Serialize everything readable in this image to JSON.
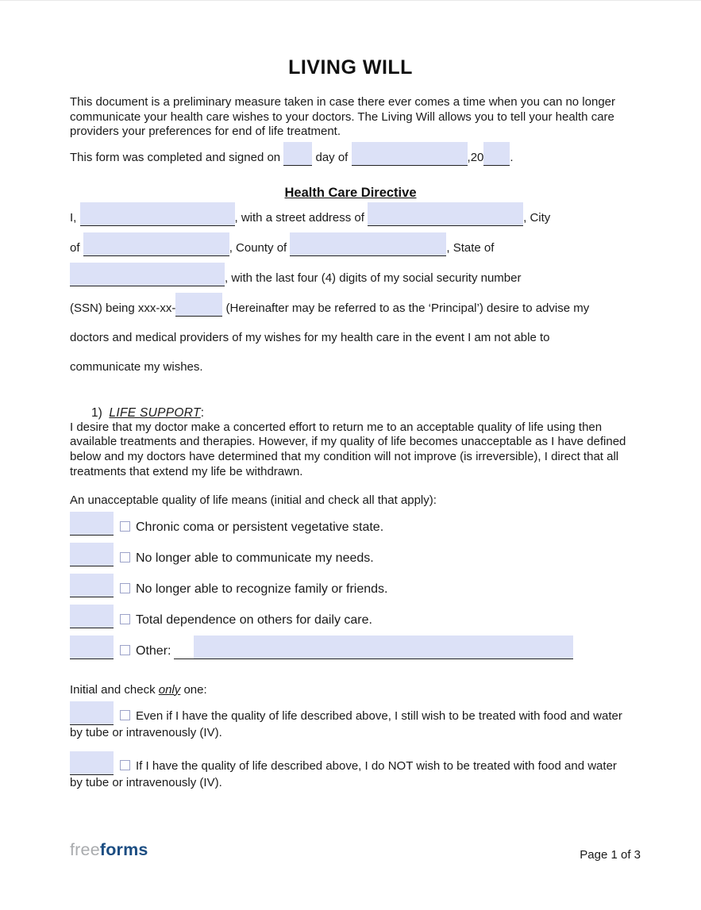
{
  "title": "LIVING WILL",
  "intro": "This document is a preliminary measure taken in case there ever comes a time when you can no longer communicate your health care wishes to your doctors. The Living Will allows you to tell your health care providers your preferences for end of life treatment.",
  "signed_line": {
    "prefix": "This form was completed and signed on",
    "middle": "day of",
    "year_prefix": ",20",
    "period": "."
  },
  "directive": {
    "heading": "Health Care Directive",
    "l1a": "I,",
    "l1b": ", with a street address of",
    "l1c": ", City",
    "l2a": "of",
    "l2b": ", County of",
    "l2c": ", State of",
    "l3": ", with the last four (4) digits of my social security number",
    "l4a": "(SSN) being xxx-xx-",
    "l4b": "(Hereinafter may be referred to as the ‘Principal’) desire to advise my",
    "l5": "doctors and medical providers of my wishes for my health care in the event I am not able to",
    "l6": "communicate my wishes."
  },
  "life_support": {
    "number": "1)",
    "heading": "LIFE SUPPORT",
    "colon": ":",
    "body": "I desire that my doctor make a concerted effort to return me to an acceptable quality of life using then available treatments and therapies. However, if my quality of life becomes unacceptable as I have defined below and my doctors have determined that my condition will not improve (is irreversible), I direct that all treatments that extend my life be withdrawn.",
    "quality_prompt": "An unacceptable quality of life means (initial and check all that apply):",
    "options": [
      {
        "label": "Chronic coma or persistent vegetative state."
      },
      {
        "label": "No longer able to communicate my needs."
      },
      {
        "label": "No longer able to recognize family or friends."
      },
      {
        "label": "Total dependence on others for daily care."
      },
      {
        "label": "Other:"
      }
    ],
    "initial_prompt_a": "Initial and check",
    "initial_prompt_em": "only",
    "initial_prompt_b": "one:",
    "exclusive_options": [
      "Even if I have the quality of life described above, I still wish to be treated with food and water by tube or intravenously (IV).",
      "If I have the quality of life described above, I do NOT wish to be treated with food and water by tube or intravenously (IV)."
    ]
  },
  "footer": {
    "logo_free": "free",
    "logo_forms": "forms",
    "page_indicator": "Page 1 of 3"
  },
  "colors": {
    "field_fill": "#dce1f7",
    "field_underline": "#222222",
    "checkbox_border": "#9da3c9",
    "logo_gray": "#a9abae",
    "logo_blue": "#1b4d82"
  }
}
